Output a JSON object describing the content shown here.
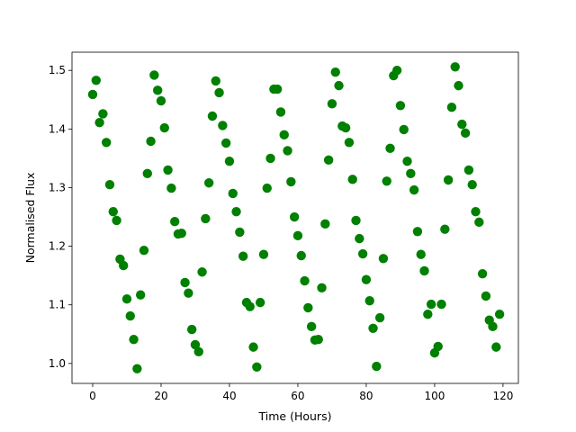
{
  "chart_data": {
    "type": "scatter",
    "x_label": "Time (Hours)",
    "y_label": "Normalised Flux",
    "color": "#008000",
    "x": [
      0,
      1,
      2,
      3,
      4,
      5,
      6,
      7,
      8,
      9,
      10,
      11,
      12,
      13,
      14,
      15,
      16,
      17,
      18,
      19,
      20,
      21,
      22,
      23,
      24,
      25,
      26,
      27,
      28,
      29,
      30,
      31,
      32,
      33,
      34,
      35,
      36,
      37,
      38,
      39,
      40,
      41,
      42,
      43,
      44,
      45,
      46,
      47,
      48,
      49,
      50,
      51,
      52,
      53,
      54,
      55,
      56,
      57,
      58,
      59,
      60,
      61,
      62,
      63,
      64,
      65,
      66,
      67,
      68,
      69,
      70,
      71,
      72,
      73,
      74,
      75,
      76,
      77,
      78,
      79,
      80,
      81,
      82,
      83,
      84,
      85,
      86,
      87,
      88,
      89,
      90,
      91,
      92,
      93,
      94,
      95,
      96,
      97,
      98,
      99,
      100,
      101,
      102,
      103,
      104,
      105,
      106,
      107,
      108,
      109,
      110,
      111,
      112,
      113,
      114,
      115,
      116,
      117,
      118,
      119
    ],
    "values": [
      1.459,
      1.483,
      1.411,
      1.426,
      1.377,
      1.305,
      1.259,
      1.244,
      1.178,
      1.167,
      1.11,
      1.081,
      1.041,
      0.991,
      1.117,
      1.193,
      1.324,
      1.379,
      1.492,
      1.466,
      1.448,
      1.402,
      1.33,
      1.299,
      1.242,
      1.221,
      1.222,
      1.138,
      1.12,
      1.058,
      1.032,
      1.02,
      1.156,
      1.247,
      1.308,
      1.422,
      1.482,
      1.462,
      1.406,
      1.376,
      1.345,
      1.29,
      1.259,
      1.224,
      1.183,
      1.104,
      1.097,
      1.028,
      0.994,
      1.104,
      1.186,
      1.299,
      1.35,
      1.468,
      1.468,
      1.429,
      1.39,
      1.363,
      1.31,
      1.25,
      1.218,
      1.184,
      1.141,
      1.095,
      1.063,
      1.04,
      1.041,
      1.129,
      1.238,
      1.347,
      1.443,
      1.497,
      1.474,
      1.405,
      1.402,
      1.377,
      1.314,
      1.244,
      1.213,
      1.187,
      1.143,
      1.107,
      1.06,
      0.995,
      1.078,
      1.179,
      1.311,
      1.367,
      1.491,
      1.5,
      1.44,
      1.399,
      1.345,
      1.324,
      1.296,
      1.225,
      1.186,
      1.158,
      1.084,
      1.101,
      1.018,
      1.029,
      1.101,
      1.229,
      1.313,
      1.437,
      1.506,
      1.474,
      1.408,
      1.393,
      1.33,
      1.305,
      1.259,
      1.241,
      1.153,
      1.115,
      1.074,
      1.063,
      1.028,
      1.084
    ],
    "xlim": [
      -6.05,
      124.5
    ],
    "ylim": [
      0.966,
      1.531
    ],
    "xticks": [
      0,
      20,
      40,
      60,
      80,
      100,
      120
    ],
    "yticks": [
      {
        "value": 1.0,
        "label": "1.0"
      },
      1.1,
      1.2,
      1.3,
      1.4,
      1.5
    ]
  }
}
